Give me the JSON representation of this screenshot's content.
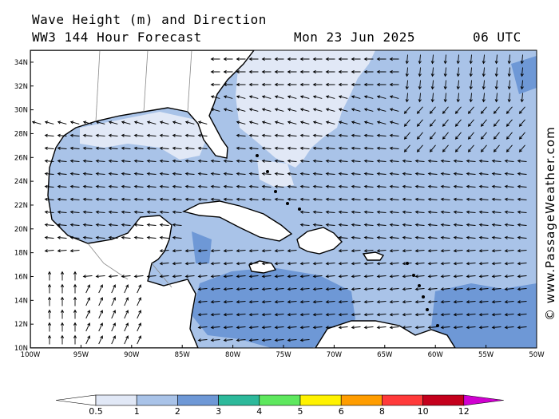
{
  "header": {
    "title": "Wave Height (m) and Direction",
    "model": "WW3 144 Hour Forecast",
    "date": "Mon 23 Jun 2025",
    "time": "06 UTC"
  },
  "credit": "© www.PassageWeather.com",
  "map": {
    "lat_range": [
      10,
      35
    ],
    "lon_range": [
      -100,
      -50
    ],
    "lat_ticks": [
      "34N",
      "32N",
      "30N",
      "28N",
      "26N",
      "24N",
      "22N",
      "20N",
      "18N",
      "16N",
      "14N",
      "12N",
      "10N"
    ],
    "lon_ticks": [
      "100W",
      "95W",
      "90W",
      "85W",
      "80W",
      "75W",
      "70W",
      "65W",
      "60W",
      "55W",
      "50W"
    ]
  },
  "colorbar": {
    "labels": [
      "0.5",
      "1",
      "2",
      "3",
      "4",
      "5",
      "6",
      "8",
      "10",
      "12"
    ],
    "colors": [
      "#e1e8f6",
      "#a9c3e8",
      "#6e98d6",
      "#2db99b",
      "#5ee85e",
      "#fff200",
      "#ff9d00",
      "#ff3a3a",
      "#c4001c",
      "#d000d0"
    ]
  }
}
